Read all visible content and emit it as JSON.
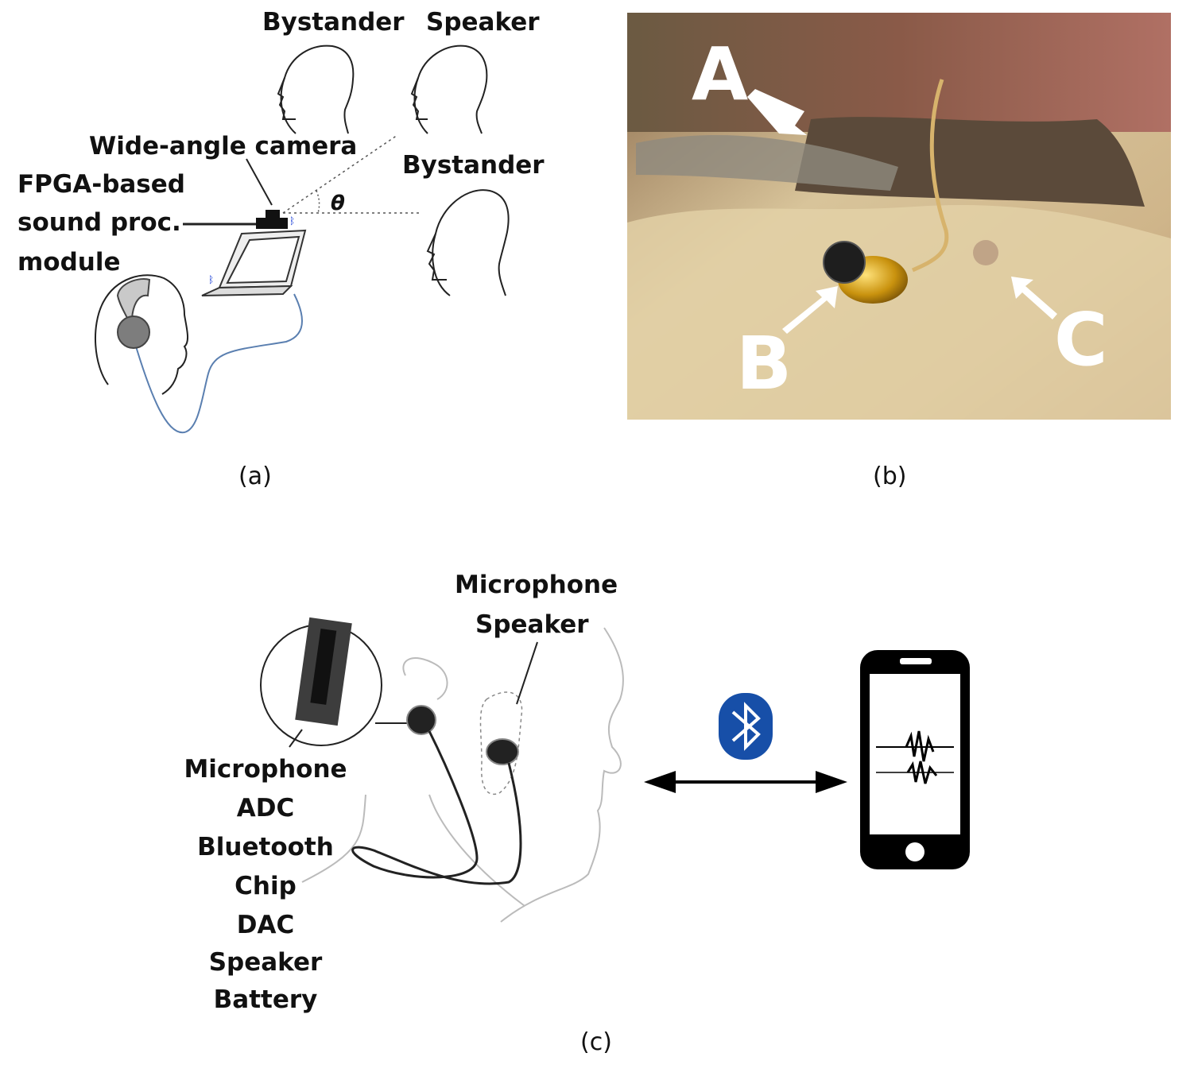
{
  "panel_a": {
    "caption": "(a)",
    "labels": {
      "bystander_left": "Bystander",
      "speaker": "Speaker",
      "bystander_right": "Bystander",
      "camera": "Wide-angle camera",
      "module_line1": "FPGA-based",
      "module_line2": "sound proc.",
      "module_line3": "module",
      "theta": "θ"
    }
  },
  "panel_b": {
    "caption": "(b)",
    "markers": [
      "A",
      "B",
      "C"
    ]
  },
  "panel_c": {
    "caption": "(c)",
    "earbud_label_line1": "Microphone",
    "earbud_label_line2": "Speaker",
    "component_list": [
      "Microphone",
      "ADC",
      "Bluetooth",
      "Chip",
      "DAC",
      "Speaker",
      "Battery"
    ],
    "icons": [
      "bluetooth-icon",
      "smartphone-icon",
      "bidirectional-arrow-icon"
    ]
  }
}
